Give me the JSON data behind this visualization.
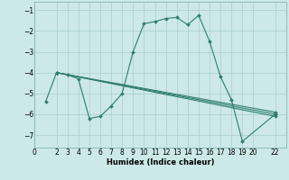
{
  "xlabel": "Humidex (Indice chaleur)",
  "background_color": "#cce8e8",
  "grid_color": "#aacece",
  "line_color": "#2e7d6e",
  "xlim": [
    0,
    23
  ],
  "ylim": [
    -7.6,
    -0.6
  ],
  "yticks": [
    -7,
    -6,
    -5,
    -4,
    -3,
    -2,
    -1
  ],
  "xticks": [
    0,
    2,
    3,
    4,
    5,
    6,
    7,
    8,
    9,
    10,
    11,
    12,
    13,
    14,
    15,
    16,
    17,
    18,
    19,
    20,
    22
  ],
  "lines": [
    {
      "x": [
        1,
        2,
        3,
        4,
        5,
        6,
        7,
        8,
        9,
        10,
        11,
        12,
        13,
        14,
        15,
        16,
        17,
        18,
        19,
        22
      ],
      "y": [
        -5.4,
        -4.0,
        -4.1,
        -4.3,
        -6.2,
        -6.1,
        -5.6,
        -5.0,
        -3.0,
        -1.65,
        -1.55,
        -1.4,
        -1.35,
        -1.7,
        -1.25,
        -2.5,
        -4.2,
        -5.3,
        -7.3,
        -6.0
      ]
    },
    {
      "x": [
        2,
        22
      ],
      "y": [
        -4.0,
        -5.9
      ]
    },
    {
      "x": [
        2,
        22
      ],
      "y": [
        -4.0,
        -6.0
      ]
    },
    {
      "x": [
        2,
        22
      ],
      "y": [
        -4.0,
        -6.1
      ]
    }
  ]
}
